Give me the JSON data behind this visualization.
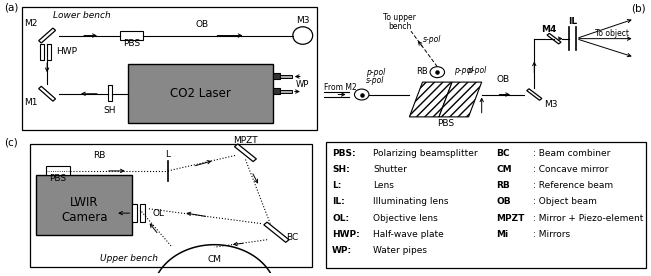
{
  "fig_width": 6.51,
  "fig_height": 2.76,
  "dpi": 100,
  "legend_left": [
    [
      "PBS",
      "Polarizing beamsplitter"
    ],
    [
      "SH",
      "Shutter"
    ],
    [
      "L",
      "Lens"
    ],
    [
      "IL",
      "Illuminating lens"
    ],
    [
      "OL",
      "Objective lens"
    ],
    [
      "HWP",
      "Half-wave plate"
    ],
    [
      "WP",
      "Water pipes"
    ]
  ],
  "legend_right": [
    [
      "BC",
      "Beam combiner"
    ],
    [
      "CM",
      "Concave mirror"
    ],
    [
      "RB",
      "Reference beam"
    ],
    [
      "OB",
      "Object beam"
    ],
    [
      "MPZT",
      "Mirror + Piezo-element"
    ],
    [
      "Mi",
      "Mirrors"
    ]
  ],
  "laser_gray": "#888888",
  "cam_gray": "#888888"
}
